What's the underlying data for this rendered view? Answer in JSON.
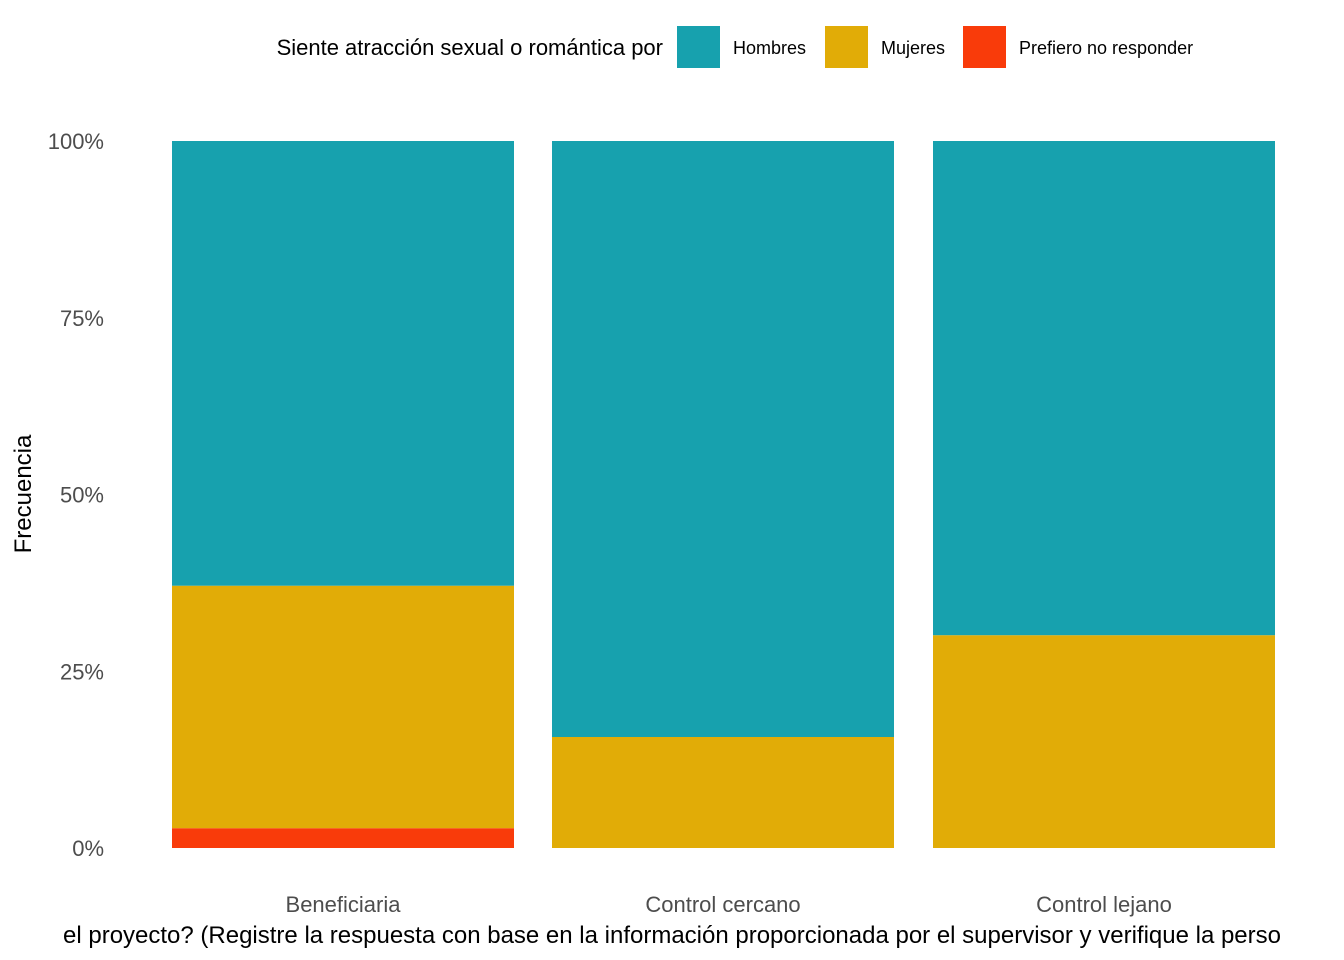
{
  "chart_data": {
    "type": "bar",
    "stacked": true,
    "normalized": true,
    "categories": [
      "Beneficiaria",
      "Control cercano",
      "Control lejano"
    ],
    "series": [
      {
        "name": "Hombres",
        "color": "#17A1AE",
        "values": [
          62.9,
          84.3,
          69.9
        ]
      },
      {
        "name": "Mujeres",
        "color": "#E1AC07",
        "values": [
          34.3,
          15.7,
          30.1
        ]
      },
      {
        "name": "Prefiero no responder",
        "color": "#F93B0A",
        "values": [
          2.8,
          0,
          0
        ]
      }
    ],
    "legend_title": "Siente atracción sexual o romántica por",
    "legend_position": "top",
    "xlabel": "el proyecto? (Registre la respuesta con base en la información proporcionada por el supervisor y verifique la perso",
    "ylabel": "Frecuencia",
    "ylim": [
      0,
      100
    ],
    "y_ticks": [
      0,
      25,
      50,
      75,
      100
    ],
    "y_tick_labels": [
      "0%",
      "25%",
      "50%",
      "75%",
      "100%"
    ],
    "grid": false
  }
}
